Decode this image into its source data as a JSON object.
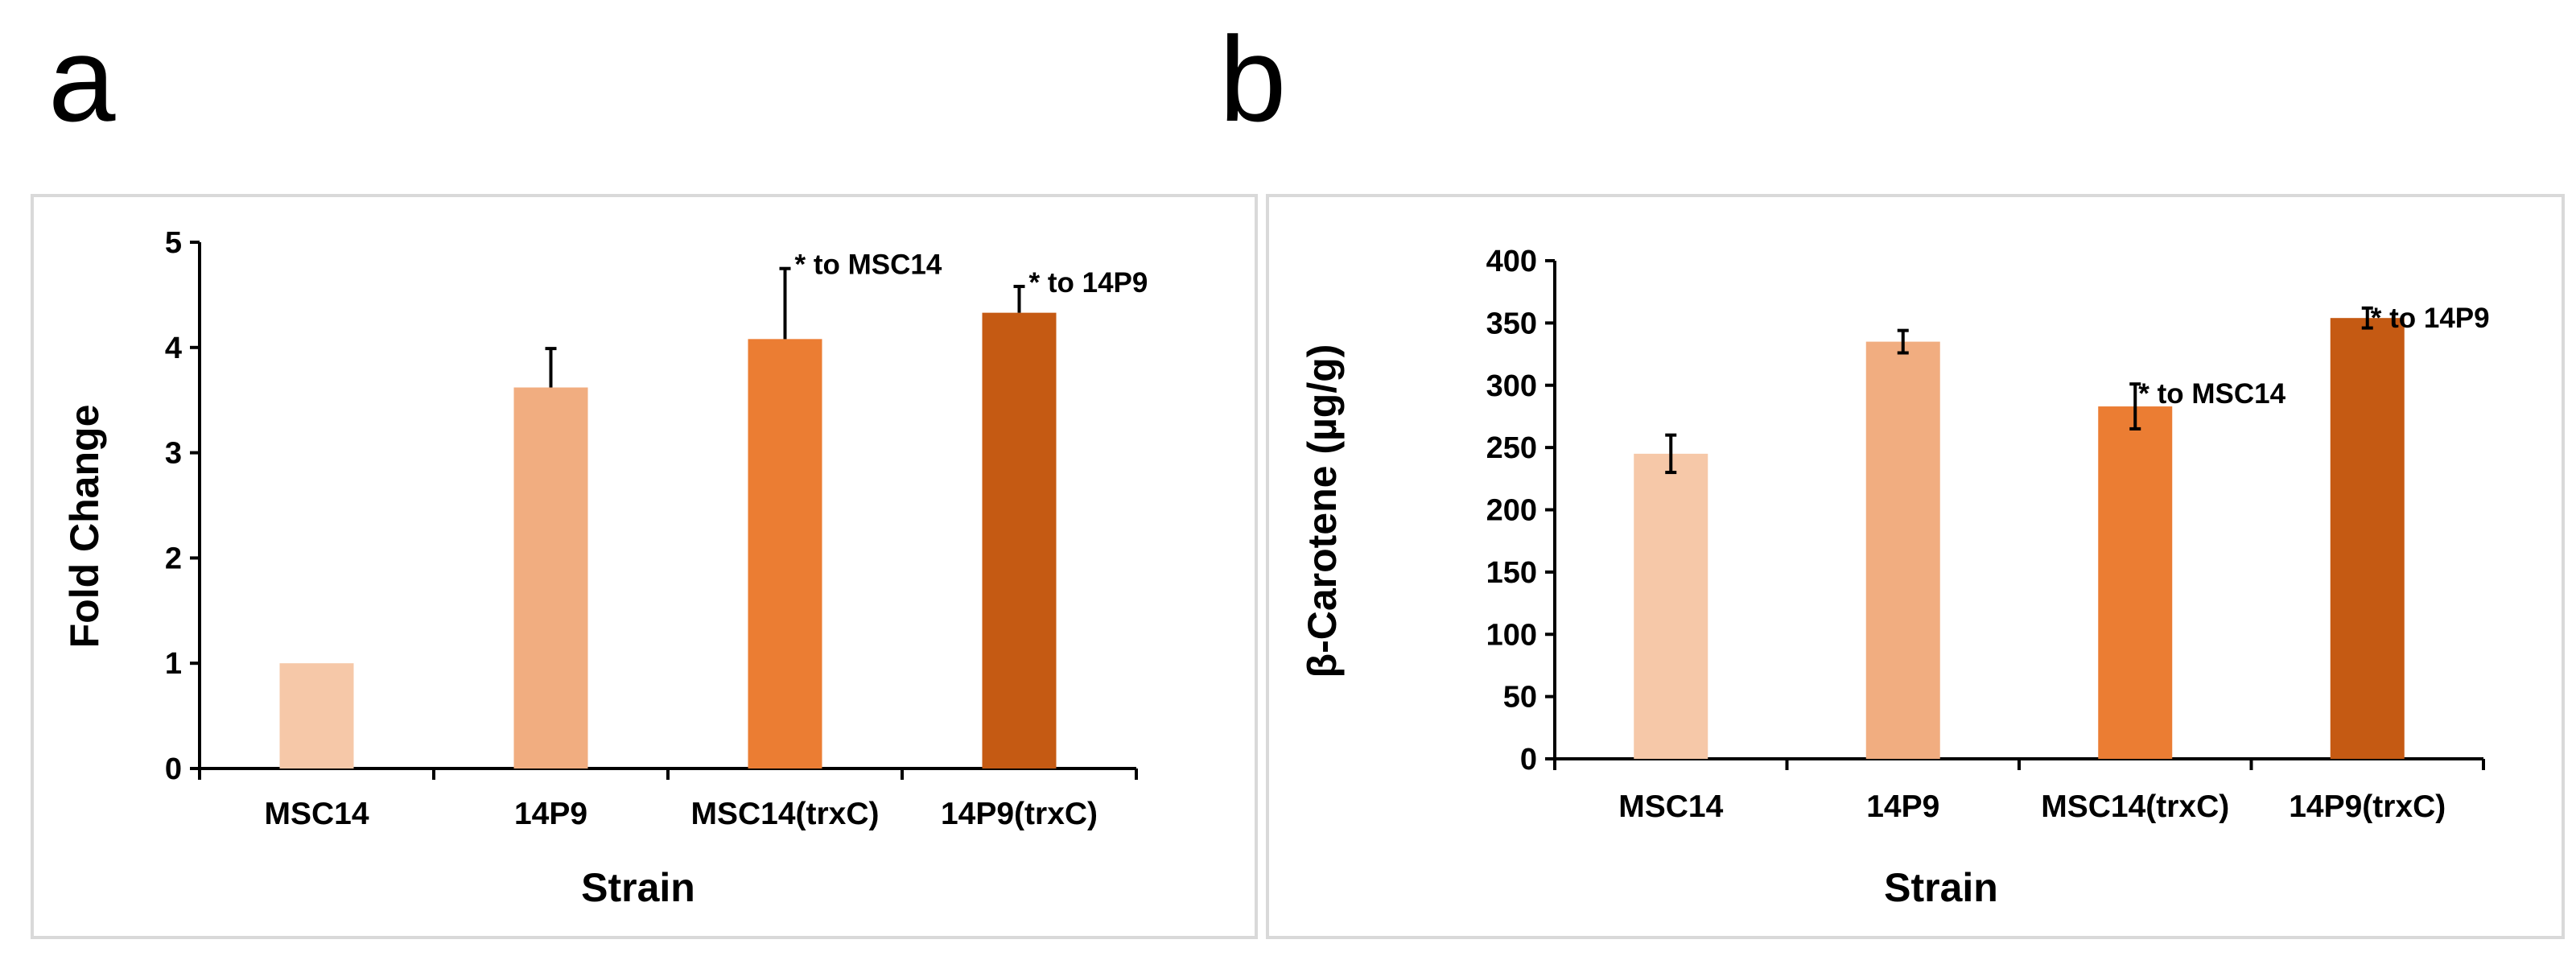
{
  "chart_data": [
    {
      "panel": "a",
      "type": "bar",
      "title": "",
      "xlabel": "Strain",
      "ylabel": "Fold Change",
      "ylim": [
        0,
        5
      ],
      "yticks": [
        "0",
        "1",
        "2",
        "3",
        "4",
        "5"
      ],
      "categories": [
        "MSC14",
        "14P9",
        "MSC14(trxC)",
        "14P9(trxC)"
      ],
      "values": [
        1,
        3.62,
        4.08,
        4.33
      ],
      "errors": [
        0,
        0.37,
        0.67,
        0.25
      ],
      "error_style": "upper",
      "colors": [
        "#f6c8a8",
        "#f1ad80",
        "#eb7d33",
        "#c55a13"
      ],
      "annotations": [
        "",
        "",
        "* to MSC14",
        "* to 14P9"
      ]
    },
    {
      "panel": "b",
      "type": "bar",
      "title": "",
      "xlabel": "Strain",
      "ylabel": "β-Carotene (µg/g)",
      "ylim": [
        0,
        400
      ],
      "yticks": [
        "0",
        "50",
        "100",
        "150",
        "200",
        "250",
        "300",
        "350",
        "400"
      ],
      "categories": [
        "MSC14",
        "14P9",
        "MSC14(trxC)",
        "14P9(trxC)"
      ],
      "values": [
        245,
        335,
        283,
        354
      ],
      "errors": [
        15,
        9,
        18,
        8
      ],
      "error_style": "both",
      "colors": [
        "#f6c8a8",
        "#f1ad80",
        "#eb7d33",
        "#c55a13"
      ],
      "annotations": [
        "",
        "",
        "* to MSC14",
        "* to 14P9"
      ]
    }
  ]
}
